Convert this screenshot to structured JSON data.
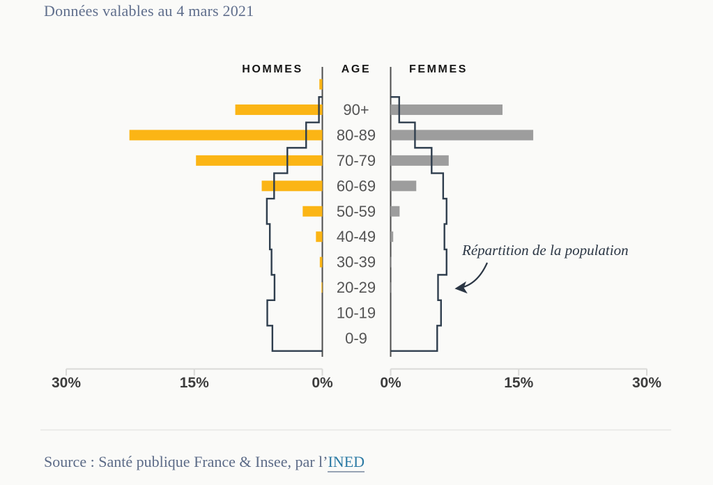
{
  "page": {
    "title": "Données valables au 4 mars 2021",
    "background": "#fafaf8"
  },
  "chart_data": {
    "type": "bar",
    "variant": "population_pyramid",
    "title": "Données valables au 4 mars 2021",
    "left_series_label": "HOMMES",
    "center_label": "AGE",
    "right_series_label": "FEMMES",
    "outline_legend": "Répartition de la population",
    "unit": "percent",
    "xlim": [
      0,
      30
    ],
    "axis_ticks": {
      "left": [
        {
          "label": "30%",
          "value": 30
        },
        {
          "label": "15%",
          "value": 15
        },
        {
          "label": "0%",
          "value": 0
        }
      ],
      "right": [
        {
          "label": "0%",
          "value": 0
        },
        {
          "label": "15%",
          "value": 15
        },
        {
          "label": "30%",
          "value": 30
        }
      ]
    },
    "rows": [
      {
        "label": "",
        "hommes": 0.35,
        "femmes": 0,
        "pop_hommes": 0,
        "pop_femmes": 0
      },
      {
        "label": "90+",
        "hommes": 10.2,
        "femmes": 13.1,
        "pop_hommes": 0.4,
        "pop_femmes": 1.0
      },
      {
        "label": "80-89",
        "hommes": 22.6,
        "femmes": 16.7,
        "pop_hommes": 1.9,
        "pop_femmes": 2.85
      },
      {
        "label": "70-79",
        "hommes": 14.8,
        "femmes": 6.8,
        "pop_hommes": 4.1,
        "pop_femmes": 4.8
      },
      {
        "label": "60-69",
        "hommes": 7.1,
        "femmes": 3.0,
        "pop_hommes": 5.65,
        "pop_femmes": 6.15
      },
      {
        "label": "50-59",
        "hommes": 2.3,
        "femmes": 1.05,
        "pop_hommes": 6.5,
        "pop_femmes": 6.55
      },
      {
        "label": "40-49",
        "hommes": 0.75,
        "femmes": 0.3,
        "pop_hommes": 6.15,
        "pop_femmes": 6.3
      },
      {
        "label": "30-39",
        "hommes": 0.3,
        "femmes": 0.1,
        "pop_hommes": 5.95,
        "pop_femmes": 6.55
      },
      {
        "label": "20-29",
        "hommes": 0.1,
        "femmes": 0.05,
        "pop_hommes": 5.6,
        "pop_femmes": 5.55
      },
      {
        "label": "10-19",
        "hommes": 0,
        "femmes": 0,
        "pop_hommes": 6.45,
        "pop_femmes": 5.9
      },
      {
        "label": "0-9",
        "hommes": 0,
        "femmes": 0,
        "pop_hommes": 5.85,
        "pop_femmes": 5.45
      }
    ],
    "colors": {
      "hommes_bars": "#fbb515",
      "femmes_bars": "#9d9d9d",
      "population_outline": "#2f3e4e",
      "center_axis": "#4c4c4c",
      "bottom_axis": "#d9d9d7"
    }
  },
  "source": {
    "prefix": "Source : Santé publique France & Insee, par l’",
    "link_label": "INED"
  }
}
